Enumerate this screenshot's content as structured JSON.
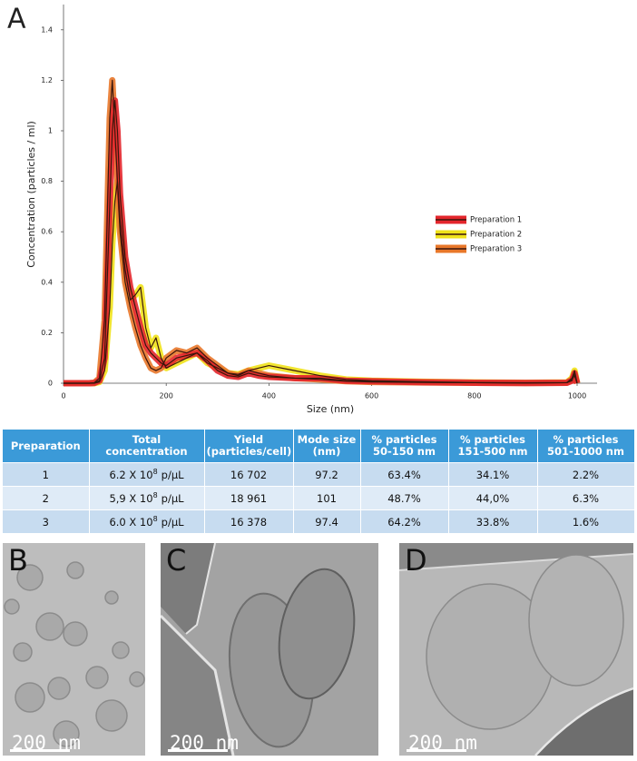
{
  "chart_data": {
    "type": "line",
    "panel_label": "A",
    "xlabel": "Size (nm)",
    "ylabel": "Concentration (particles / ml)",
    "x": [
      0,
      50,
      60,
      70,
      80,
      90,
      95,
      100,
      105,
      110,
      120,
      130,
      140,
      150,
      160,
      170,
      180,
      190,
      200,
      220,
      240,
      260,
      280,
      300,
      320,
      340,
      360,
      380,
      400,
      450,
      500,
      550,
      600,
      700,
      800,
      900,
      980,
      990,
      995,
      1000
    ],
    "series": [
      {
        "name": "Preparation 1",
        "color": "#e3262c",
        "values": [
          0,
          0,
          0.001,
          0.01,
          0.1,
          0.7,
          1.0,
          1.12,
          1.0,
          0.75,
          0.5,
          0.38,
          0.3,
          0.22,
          0.15,
          0.12,
          0.1,
          0.08,
          0.07,
          0.1,
          0.11,
          0.12,
          0.09,
          0.05,
          0.03,
          0.025,
          0.04,
          0.03,
          0.025,
          0.02,
          0.02,
          0.01,
          0.008,
          0.004,
          0.002,
          0.001,
          0.002,
          0.01,
          0.04,
          0
        ]
      },
      {
        "name": "Preparation 2",
        "color": "#efe21a",
        "values": [
          0,
          0,
          0,
          0.005,
          0.05,
          0.3,
          0.55,
          0.72,
          0.8,
          0.65,
          0.45,
          0.33,
          0.35,
          0.38,
          0.22,
          0.14,
          0.18,
          0.1,
          0.06,
          0.08,
          0.1,
          0.12,
          0.08,
          0.06,
          0.04,
          0.035,
          0.05,
          0.06,
          0.07,
          0.05,
          0.03,
          0.015,
          0.01,
          0.006,
          0.003,
          0.002,
          0.003,
          0.02,
          0.05,
          0
        ]
      },
      {
        "name": "Preparation 3",
        "color": "#e8772a",
        "values": [
          0,
          0,
          0.002,
          0.02,
          0.25,
          1.05,
          1.2,
          1.0,
          0.8,
          0.6,
          0.4,
          0.3,
          0.22,
          0.15,
          0.1,
          0.06,
          0.05,
          0.06,
          0.1,
          0.13,
          0.12,
          0.14,
          0.1,
          0.07,
          0.04,
          0.03,
          0.05,
          0.04,
          0.03,
          0.02,
          0.015,
          0.008,
          0.005,
          0.003,
          0.002,
          0.001,
          0.002,
          0.015,
          0.03,
          0
        ]
      }
    ],
    "xlim": [
      0,
      1040
    ],
    "xticks": [
      0,
      200,
      400,
      600,
      800,
      1000
    ],
    "ylim": [
      0,
      1.5
    ],
    "yticks": [
      0,
      0.2,
      0.4,
      0.6,
      0.8,
      1.0,
      1.2,
      1.4
    ],
    "legend": "right"
  },
  "table": {
    "header": [
      "Preparation",
      "Total concentration",
      "Yield (particles/cell)",
      "Mode size (nm)",
      "% particles 50-150 nm",
      "% particles 151-500 nm",
      "% particles 501-1000 nm"
    ],
    "rows": [
      [
        "1",
        {
          "mantissa": "6.2 X 10",
          "exponent": "8",
          "unit": "p/µL"
        },
        "16 702",
        "97.2",
        "63.4%",
        "34.1%",
        "2.2%"
      ],
      [
        "2",
        {
          "mantissa": "5,9 X 10",
          "exponent": "8",
          "unit": "p/µL"
        },
        "18 961",
        "101",
        "48.7%",
        "44,0%",
        "6.3%"
      ],
      [
        "3",
        {
          "mantissa": "6.0 X 10",
          "exponent": "8",
          "unit": "p/µL"
        },
        "16 378",
        "97.4",
        "64.2%",
        "33.8%",
        "1.6%"
      ]
    ]
  },
  "images": [
    {
      "label": "B",
      "scale_bar": "200 nm"
    },
    {
      "label": "C",
      "scale_bar": "200 nm"
    },
    {
      "label": "D",
      "scale_bar": "200 nm"
    }
  ]
}
